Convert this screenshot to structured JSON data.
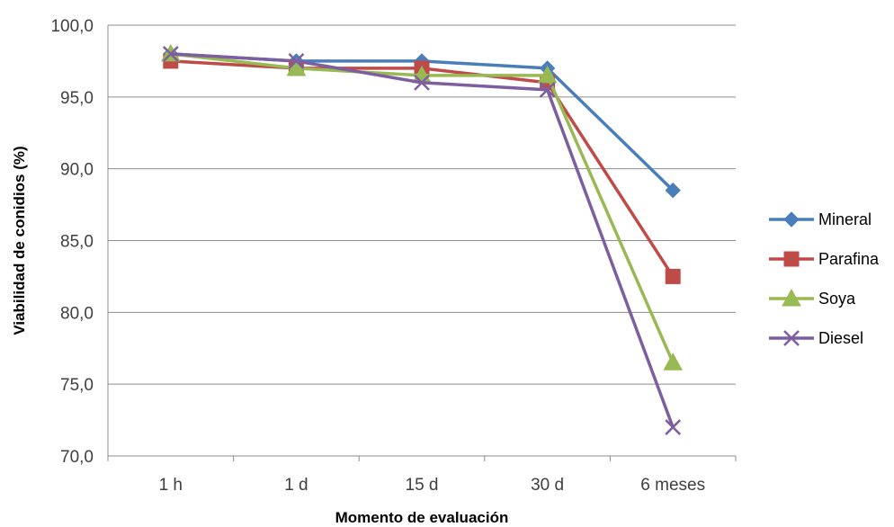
{
  "chart_data": {
    "type": "line",
    "categories": [
      "1 h",
      "1 d",
      "15 d",
      "30 d",
      "6 meses"
    ],
    "series": [
      {
        "name": "Mineral",
        "values": [
          98.0,
          97.5,
          97.5,
          97.0,
          88.5
        ],
        "color": "#4a7ebb",
        "marker": "diamond"
      },
      {
        "name": "Parafina",
        "values": [
          97.5,
          97.0,
          97.0,
          96.0,
          82.5
        ],
        "color": "#be4b48",
        "marker": "square"
      },
      {
        "name": "Soya",
        "values": [
          98.0,
          97.0,
          96.5,
          96.5,
          76.5
        ],
        "color": "#98b954",
        "marker": "triangle"
      },
      {
        "name": "Diesel",
        "values": [
          98.0,
          97.5,
          96.0,
          95.5,
          72.0
        ],
        "color": "#7d5fa0",
        "marker": "x"
      }
    ],
    "xlabel": "Momento de evaluación",
    "ylabel": "Viabilidad de conidios (%)",
    "ylim": [
      70,
      100
    ],
    "yticks": [
      "70,0",
      "75,0",
      "80,0",
      "85,0",
      "90,0",
      "95,0",
      "100,0"
    ],
    "grid": "horizontal",
    "legend_position": "right"
  }
}
